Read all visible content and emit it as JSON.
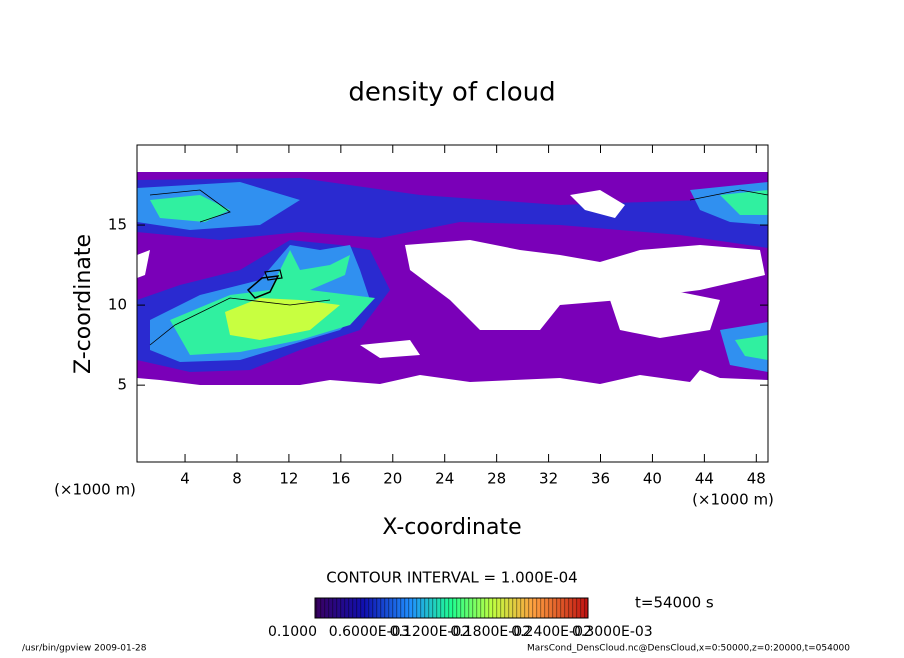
{
  "chart_data": {
    "type": "contour",
    "title": "density of cloud",
    "x_label": "X-coordinate",
    "y_label": "Z-coordinate",
    "x_unit": "(×1000 m)",
    "y_unit": "(×1000 m)",
    "xlim": [
      0.3,
      48.9
    ],
    "ylim": [
      0.2,
      20
    ],
    "xticks": [
      4,
      8,
      12,
      16,
      20,
      24,
      28,
      32,
      36,
      40,
      44,
      48
    ],
    "yticks": [
      5,
      10,
      15
    ],
    "contour_interval": "CONTOUR INTERVAL = 1.000E-04",
    "time": "t=54000 s",
    "colorbar_labels": [
      "0.1000",
      "0.6000E-03",
      "0.1200E-02",
      "0.1800E-02",
      "0.2400E-02",
      "0.3000E-03"
    ]
  },
  "footer": {
    "left": "/usr/bin/gpview   2009-01-28",
    "right": "MarsCond_DensCloud.nc@DensCloud,x=0:50000,z=0:20000,t=054000"
  }
}
